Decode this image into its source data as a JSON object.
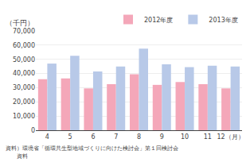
{
  "chart_data": {
    "type": "bar",
    "categories": [
      "4",
      "5",
      "6",
      "7",
      "8",
      "9",
      "10",
      "11",
      "12（月）"
    ],
    "series": [
      {
        "name": "2012年度",
        "color": "#f4a7b9",
        "values": [
          36000,
          36500,
          29500,
          32500,
          39500,
          32000,
          34000,
          32500,
          29500
        ]
      },
      {
        "name": "2013年度",
        "color": "#b8c9e8",
        "values": [
          47000,
          52500,
          41500,
          45000,
          57500,
          46500,
          44500,
          45500,
          45000
        ]
      }
    ],
    "ylabel": "（千円）",
    "ylim": [
      0,
      70000
    ],
    "yticks": [
      0,
      {
        "value": 10000,
        "label": "10,000"
      },
      {
        "value": 20000,
        "label": "20,000"
      },
      {
        "value": 30000,
        "label": "30,000"
      },
      {
        "value": 40000,
        "label": "40,000"
      },
      {
        "value": 50000,
        "label": "50,000"
      },
      {
        "value": 60000,
        "label": "60,000"
      },
      {
        "value": 70000,
        "label": "70,000"
      }
    ],
    "grid": true,
    "legend": "upper right",
    "annotations": [
      "資料）環境省「循環共生型地域づくりに向けた検討会」第１回検討会",
      "　　資料"
    ]
  }
}
